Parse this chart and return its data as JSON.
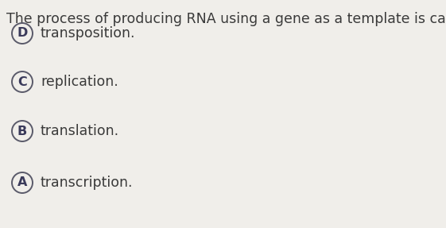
{
  "question": "The process of producing RNA using a gene as a template is called",
  "options": [
    {
      "letter": "A",
      "text": "transcription."
    },
    {
      "letter": "B",
      "text": "translation."
    },
    {
      "letter": "C",
      "text": "replication."
    },
    {
      "letter": "D",
      "text": "transposition."
    }
  ],
  "bg_color": "#f0eeea",
  "text_color": "#3a3a3a",
  "circle_edge_color": "#5a5a6a",
  "circle_face_color": "#f0eeea",
  "letter_color": "#3a3a5a",
  "question_fontsize": 12.5,
  "option_fontsize": 12.5,
  "letter_fontsize": 11.5
}
